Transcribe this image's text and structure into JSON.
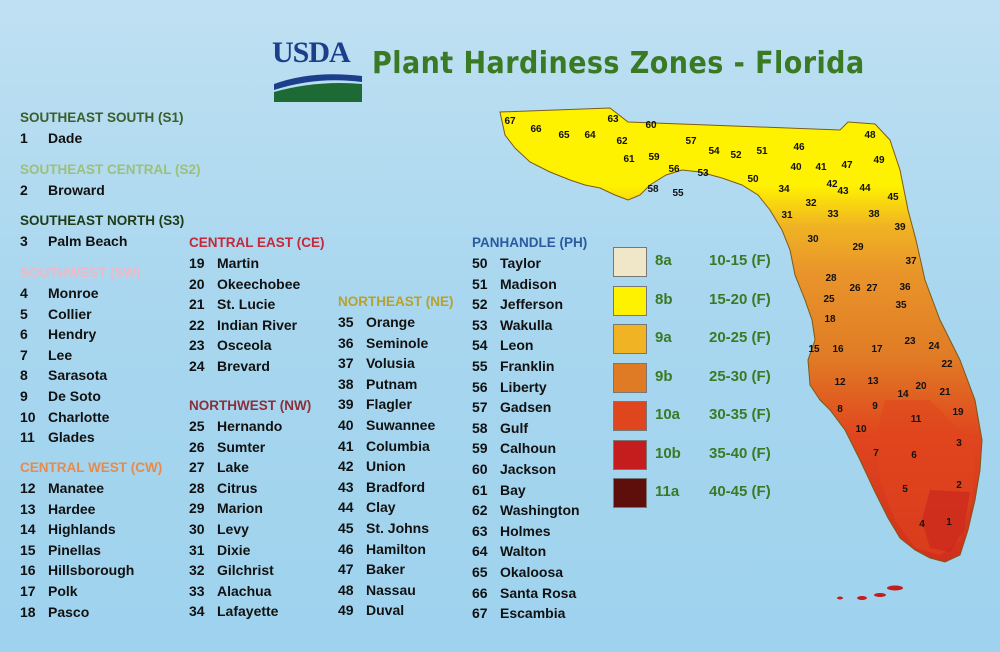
{
  "logo": {
    "text": "USDA"
  },
  "title": "Plant Hardiness Zones - Florida",
  "colors": {
    "title_green": "#3a7a25",
    "zone_8a": "#efe7c8",
    "zone_8b": "#fff200",
    "zone_9a": "#f0b323",
    "zone_9b": "#e07b25",
    "zone_10a": "#e0461e",
    "zone_10b": "#c51d1d",
    "zone_11a": "#5e0f0b"
  },
  "regions": [
    {
      "id": "s1",
      "heading": "SOUTHEAST SOUTH (S1)",
      "color": "#3b5e2a",
      "counties": [
        {
          "num": "1",
          "name": "Dade"
        }
      ]
    },
    {
      "id": "s2",
      "heading": "SOUTHEAST CENTRAL (S2)",
      "color": "#9cc07a",
      "counties": [
        {
          "num": "2",
          "name": "Broward"
        }
      ]
    },
    {
      "id": "s3",
      "heading": "SOUTHEAST NORTH (S3)",
      "color": "#1f3b16",
      "counties": [
        {
          "num": "3",
          "name": "Palm Beach"
        }
      ]
    },
    {
      "id": "sw",
      "heading": "SOUTHWEST (SW)",
      "color": "#f2b7c6",
      "counties": [
        {
          "num": "4",
          "name": "Monroe"
        },
        {
          "num": "5",
          "name": "Collier"
        },
        {
          "num": "6",
          "name": "Hendry"
        },
        {
          "num": "7",
          "name": "Lee"
        },
        {
          "num": "8",
          "name": "Sarasota"
        },
        {
          "num": "9",
          "name": "De Soto"
        },
        {
          "num": "10",
          "name": "Charlotte"
        },
        {
          "num": "11",
          "name": "Glades"
        }
      ]
    },
    {
      "id": "cw",
      "heading": "CENTRAL WEST (CW)",
      "color": "#e88a4a",
      "counties": [
        {
          "num": "12",
          "name": "Manatee"
        },
        {
          "num": "13",
          "name": "Hardee"
        },
        {
          "num": "14",
          "name": "Highlands"
        },
        {
          "num": "15",
          "name": "Pinellas"
        },
        {
          "num": "16",
          "name": "Hillsborough"
        },
        {
          "num": "17",
          "name": "Polk"
        },
        {
          "num": "18",
          "name": "Pasco"
        }
      ]
    },
    {
      "id": "ce",
      "heading": "CENTRAL EAST (CE)",
      "color": "#c4283a",
      "counties": [
        {
          "num": "19",
          "name": "Martin"
        },
        {
          "num": "20",
          "name": "Okeechobee"
        },
        {
          "num": "21",
          "name": "St. Lucie"
        },
        {
          "num": "22",
          "name": "Indian River"
        },
        {
          "num": "23",
          "name": "Osceola"
        },
        {
          "num": "24",
          "name": "Brevard"
        }
      ]
    },
    {
      "id": "nw",
      "heading": "NORTHWEST (NW)",
      "color": "#8c2f3a",
      "counties": [
        {
          "num": "25",
          "name": "Hernando"
        },
        {
          "num": "26",
          "name": "Sumter"
        },
        {
          "num": "27",
          "name": "Lake"
        },
        {
          "num": "28",
          "name": "Citrus"
        },
        {
          "num": "29",
          "name": "Marion"
        },
        {
          "num": "30",
          "name": "Levy"
        },
        {
          "num": "31",
          "name": "Dixie"
        },
        {
          "num": "32",
          "name": "Gilchrist"
        },
        {
          "num": "33",
          "name": "Alachua"
        },
        {
          "num": "34",
          "name": "Lafayette"
        }
      ]
    },
    {
      "id": "ne",
      "heading": "NORTHEAST (NE)",
      "color": "#b8a12e",
      "counties": [
        {
          "num": "35",
          "name": "Orange"
        },
        {
          "num": "36",
          "name": "Seminole"
        },
        {
          "num": "37",
          "name": "Volusia"
        },
        {
          "num": "38",
          "name": "Putnam"
        },
        {
          "num": "39",
          "name": "Flagler"
        },
        {
          "num": "40",
          "name": "Suwannee"
        },
        {
          "num": "41",
          "name": "Columbia"
        },
        {
          "num": "42",
          "name": "Union"
        },
        {
          "num": "43",
          "name": "Bradford"
        },
        {
          "num": "44",
          "name": "Clay"
        },
        {
          "num": "45",
          "name": "St. Johns"
        },
        {
          "num": "46",
          "name": "Hamilton"
        },
        {
          "num": "47",
          "name": "Baker"
        },
        {
          "num": "48",
          "name": "Nassau"
        },
        {
          "num": "49",
          "name": "Duval"
        }
      ]
    },
    {
      "id": "ph",
      "heading": "PANHANDLE (PH)",
      "color": "#2b5a9e",
      "counties": [
        {
          "num": "50",
          "name": "Taylor"
        },
        {
          "num": "51",
          "name": "Madison"
        },
        {
          "num": "52",
          "name": "Jefferson"
        },
        {
          "num": "53",
          "name": "Wakulla"
        },
        {
          "num": "54",
          "name": "Leon"
        },
        {
          "num": "55",
          "name": "Franklin"
        },
        {
          "num": "56",
          "name": "Liberty"
        },
        {
          "num": "57",
          "name": "Gadsen"
        },
        {
          "num": "58",
          "name": "Gulf"
        },
        {
          "num": "59",
          "name": "Calhoun"
        },
        {
          "num": "60",
          "name": "Jackson"
        },
        {
          "num": "61",
          "name": "Bay"
        },
        {
          "num": "62",
          "name": "Washington"
        },
        {
          "num": "63",
          "name": "Holmes"
        },
        {
          "num": "64",
          "name": "Walton"
        },
        {
          "num": "65",
          "name": "Okaloosa"
        },
        {
          "num": "66",
          "name": "Santa Rosa"
        },
        {
          "num": "67",
          "name": "Escambia"
        }
      ]
    }
  ],
  "legend": [
    {
      "zone": "8a",
      "range": "10-15 (F)",
      "color": "#efe7c8"
    },
    {
      "zone": "8b",
      "range": "15-20 (F)",
      "color": "#fff200"
    },
    {
      "zone": "9a",
      "range": "20-25 (F)",
      "color": "#f0b323"
    },
    {
      "zone": "9b",
      "range": "25-30 (F)",
      "color": "#e07b25"
    },
    {
      "zone": "10a",
      "range": "30-35 (F)",
      "color": "#e0461e"
    },
    {
      "zone": "10b",
      "range": "35-40 (F)",
      "color": "#c51d1d"
    },
    {
      "zone": "11a",
      "range": "40-45 (F)",
      "color": "#5e0f0b"
    }
  ],
  "map_labels": [
    "1",
    "2",
    "3",
    "4",
    "5",
    "6",
    "7",
    "8",
    "9",
    "10",
    "11",
    "12",
    "13",
    "14",
    "15",
    "16",
    "17",
    "18",
    "19",
    "20",
    "21",
    "22",
    "23",
    "24",
    "25",
    "26",
    "27",
    "28",
    "29",
    "30",
    "31",
    "32",
    "33",
    "34",
    "35",
    "36",
    "37",
    "38",
    "39",
    "40",
    "41",
    "42",
    "43",
    "44",
    "45",
    "46",
    "47",
    "48",
    "49",
    "50",
    "51",
    "52",
    "53",
    "54",
    "55",
    "56",
    "57",
    "58",
    "59",
    "60",
    "61",
    "62",
    "63",
    "64",
    "65",
    "66",
    "67"
  ]
}
